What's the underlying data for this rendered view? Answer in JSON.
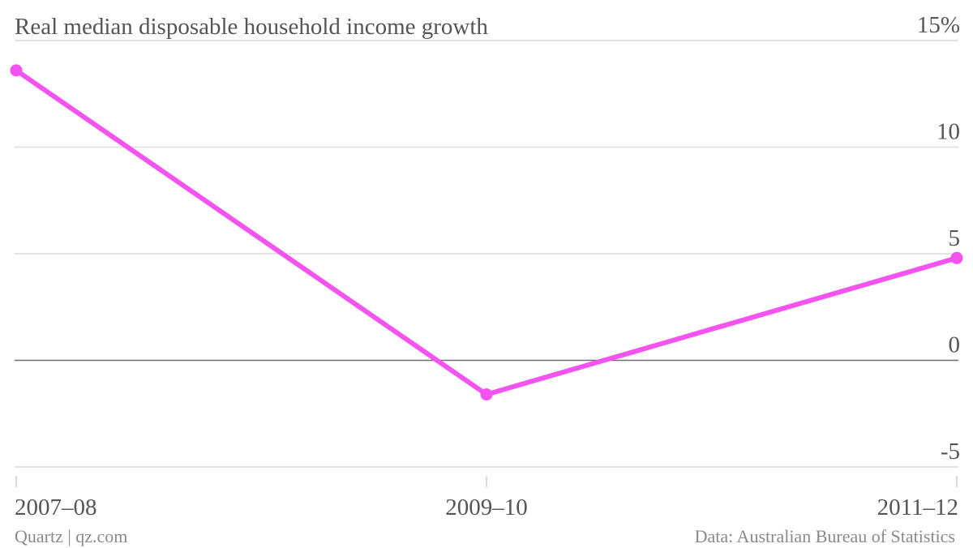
{
  "chart_data": {
    "type": "line",
    "title": "Real median disposable household income growth",
    "categories": [
      "2007–08",
      "2009–10",
      "2011–12"
    ],
    "series": [
      {
        "values": [
          13.6,
          -1.6,
          4.8
        ],
        "color": "#f553f0"
      }
    ],
    "ylim": [
      -5,
      15
    ],
    "yticks": [
      -5,
      0,
      5,
      10,
      15
    ],
    "ytick_labels": [
      "-5",
      "0",
      "5",
      "10",
      "15%"
    ],
    "grid": true,
    "y_axis_side": "right"
  },
  "footer": {
    "left": "Quartz | qz.com",
    "right": "Data: Australian Bureau of Statistics"
  }
}
